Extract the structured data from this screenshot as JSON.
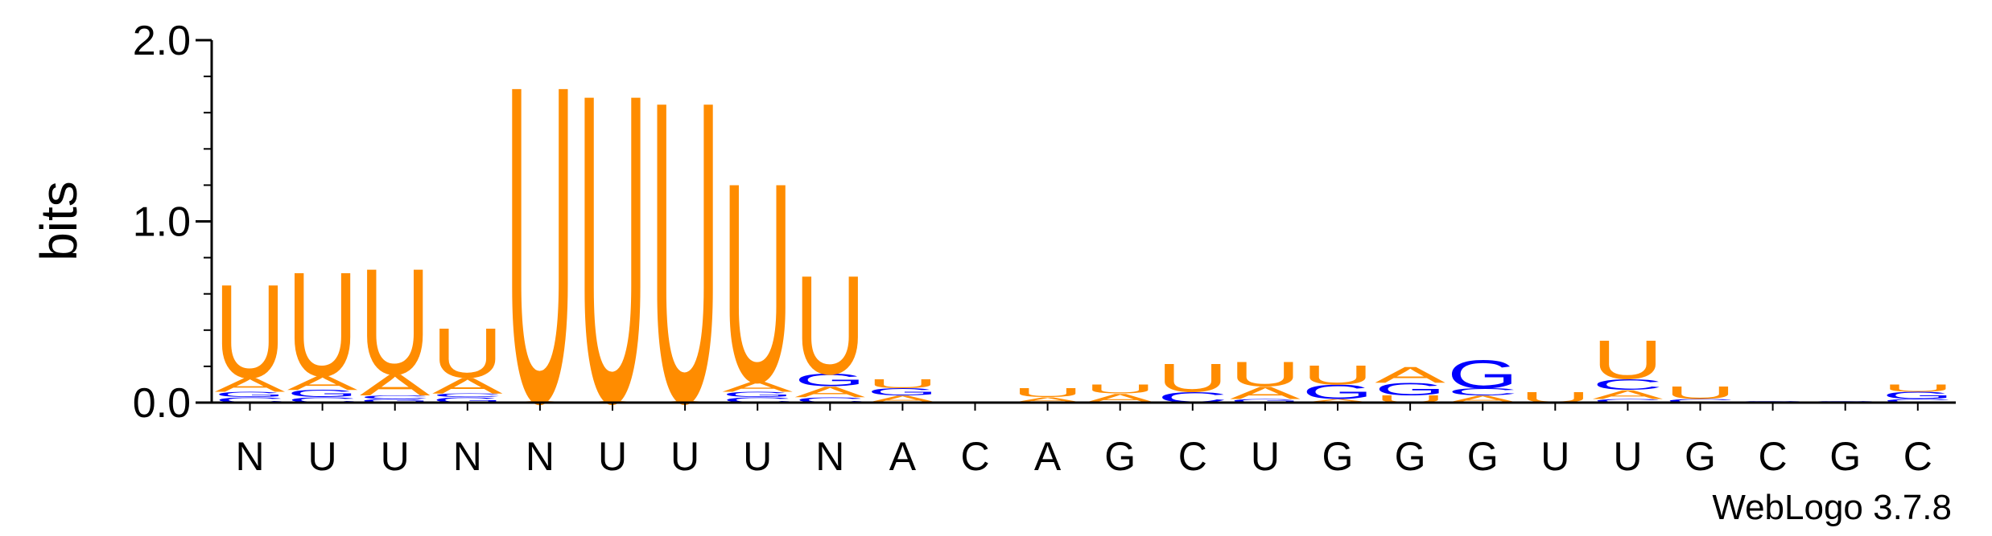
{
  "chart_data": {
    "type": "sequence-logo",
    "ylabel": "bits",
    "ylim": [
      0,
      2.0
    ],
    "yticks": [
      "0.0",
      "1.0",
      "2.0"
    ],
    "x_labels": [
      "N",
      "U",
      "U",
      "N",
      "N",
      "U",
      "U",
      "U",
      "N",
      "A",
      "C",
      "A",
      "G",
      "C",
      "U",
      "G",
      "G",
      "G",
      "U",
      "U",
      "G",
      "C",
      "G",
      "C"
    ],
    "credit": "WebLogo 3.7.8",
    "colors": {
      "U": "#ff8c00",
      "A": "#ff8c00",
      "G": "#0000ff",
      "C": "#0000ff"
    },
    "positions": [
      [
        [
          "C",
          0.03
        ],
        [
          "G",
          0.03
        ],
        [
          "A",
          0.08
        ],
        [
          "U",
          0.53
        ]
      ],
      [
        [
          "C",
          0.03
        ],
        [
          "G",
          0.04
        ],
        [
          "A",
          0.08
        ],
        [
          "U",
          0.59
        ]
      ],
      [
        [
          "G",
          0.02
        ],
        [
          "C",
          0.02
        ],
        [
          "A",
          0.12
        ],
        [
          "U",
          0.6
        ]
      ],
      [
        [
          "G",
          0.03
        ],
        [
          "C",
          0.02
        ],
        [
          "A",
          0.09
        ],
        [
          "U",
          0.28
        ]
      ],
      [
        [
          "A",
          0.01
        ],
        [
          "U",
          1.8
        ]
      ],
      [
        [
          "A",
          0.01
        ],
        [
          "U",
          1.75
        ]
      ],
      [
        [
          "A",
          0.01
        ],
        [
          "U",
          1.71
        ]
      ],
      [
        [
          "C",
          0.03
        ],
        [
          "G",
          0.03
        ],
        [
          "A",
          0.06
        ],
        [
          "U",
          1.13
        ]
      ],
      [
        [
          "C",
          0.03
        ],
        [
          "A",
          0.06
        ],
        [
          "G",
          0.07
        ],
        [
          "U",
          0.56
        ]
      ],
      [
        [
          "A",
          0.04
        ],
        [
          "G",
          0.04
        ],
        [
          "U",
          0.05
        ]
      ],
      [],
      [
        [
          "A",
          0.03
        ],
        [
          "U",
          0.05
        ]
      ],
      [
        [
          "A",
          0.05
        ],
        [
          "U",
          0.05
        ]
      ],
      [
        [
          "C",
          0.06
        ],
        [
          "U",
          0.16
        ]
      ],
      [
        [
          "G",
          0.02
        ],
        [
          "A",
          0.07
        ],
        [
          "U",
          0.14
        ]
      ],
      [
        [
          "A",
          0.02
        ],
        [
          "G",
          0.08
        ],
        [
          "U",
          0.11
        ]
      ],
      [
        [
          "U",
          0.04
        ],
        [
          "G",
          0.07
        ],
        [
          "A",
          0.09
        ]
      ],
      [
        [
          "A",
          0.04
        ],
        [
          "C",
          0.04
        ],
        [
          "G",
          0.16
        ]
      ],
      [
        [
          "U",
          0.06
        ]
      ],
      [
        [
          "C",
          0.02
        ],
        [
          "A",
          0.05
        ],
        [
          "C",
          0.06
        ],
        [
          "U",
          0.22
        ]
      ],
      [
        [
          "C",
          0.02
        ],
        [
          "U",
          0.07
        ]
      ],
      [
        [
          "G",
          0.01
        ]
      ],
      [
        [
          "G",
          0.01
        ]
      ],
      [
        [
          "C",
          0.02
        ],
        [
          "G",
          0.04
        ],
        [
          "U",
          0.04
        ]
      ]
    ]
  }
}
